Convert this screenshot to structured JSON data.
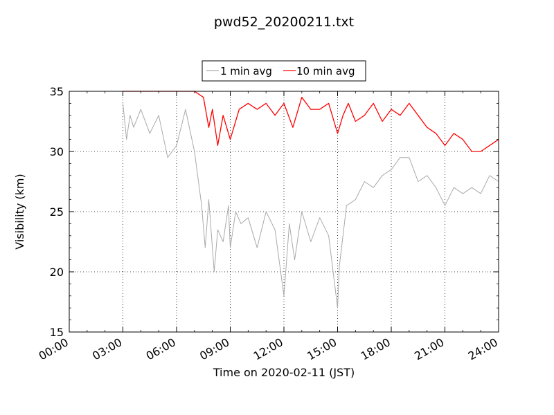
{
  "chart_data": {
    "type": "line",
    "title": "pwd52_20200211.txt",
    "xlabel": "Time on 2020-02-11 (JST)",
    "ylabel": "Visibility (km)",
    "xlim": [
      "00:00",
      "24:00"
    ],
    "ylim": [
      15,
      35
    ],
    "x_ticks": [
      "00:00",
      "03:00",
      "06:00",
      "09:00",
      "12:00",
      "15:00",
      "18:00",
      "21:00",
      "24:00"
    ],
    "y_ticks": [
      15,
      20,
      25,
      30,
      35
    ],
    "grid": true,
    "legend_position": "top-center",
    "series": [
      {
        "name": "1 min avg",
        "color": "#a9a9a9",
        "x_hours": [
          3.0,
          3.2,
          3.4,
          3.6,
          4.0,
          4.5,
          5.0,
          5.5,
          6.0,
          6.5,
          7.0,
          7.4,
          7.6,
          7.8,
          8.1,
          8.3,
          8.6,
          8.9,
          9.0,
          9.3,
          9.6,
          10.0,
          10.5,
          11.0,
          11.5,
          12.0,
          12.3,
          12.6,
          13.0,
          13.5,
          14.0,
          14.5,
          15.0,
          15.1,
          15.5,
          16.0,
          16.5,
          17.0,
          17.5,
          18.0,
          18.5,
          19.0,
          19.5,
          20.0,
          20.5,
          21.0,
          21.5,
          22.0,
          22.5,
          23.0,
          23.5,
          24.0
        ],
        "values": [
          34.0,
          31.0,
          33.0,
          32.0,
          33.5,
          31.5,
          33.0,
          29.5,
          30.5,
          33.5,
          30.0,
          25.5,
          22.0,
          26.0,
          20.0,
          23.5,
          22.5,
          25.5,
          22.0,
          25.0,
          24.0,
          24.5,
          22.0,
          25.0,
          23.5,
          18.0,
          24.0,
          21.0,
          25.0,
          22.5,
          24.5,
          23.0,
          17.0,
          20.5,
          25.5,
          26.0,
          27.5,
          27.0,
          28.0,
          28.5,
          29.5,
          29.5,
          27.5,
          28.0,
          27.0,
          25.5,
          27.0,
          26.5,
          27.0,
          26.5,
          28.0,
          27.5
        ]
      },
      {
        "name": "10 min avg",
        "color": "#ff0000",
        "x_hours": [
          3.0,
          3.5,
          4.0,
          5.0,
          6.0,
          7.0,
          7.5,
          7.8,
          8.0,
          8.3,
          8.6,
          9.0,
          9.5,
          10.0,
          10.5,
          11.0,
          11.5,
          12.0,
          12.5,
          13.0,
          13.5,
          14.0,
          14.5,
          15.0,
          15.3,
          15.6,
          16.0,
          16.5,
          17.0,
          17.5,
          18.0,
          18.5,
          19.0,
          19.5,
          20.0,
          20.5,
          21.0,
          21.5,
          22.0,
          22.5,
          23.0,
          23.5,
          24.0
        ],
        "values": [
          35.0,
          35.0,
          35.0,
          35.0,
          35.0,
          35.0,
          34.5,
          32.0,
          33.5,
          30.5,
          33.0,
          31.0,
          33.5,
          34.0,
          33.5,
          34.0,
          33.0,
          34.0,
          32.0,
          34.5,
          33.5,
          33.5,
          34.0,
          31.5,
          33.0,
          34.0,
          32.5,
          33.0,
          34.0,
          32.5,
          33.5,
          33.0,
          34.0,
          33.0,
          32.0,
          31.5,
          30.5,
          31.5,
          31.0,
          30.0,
          30.0,
          30.5,
          31.0
        ]
      }
    ]
  }
}
